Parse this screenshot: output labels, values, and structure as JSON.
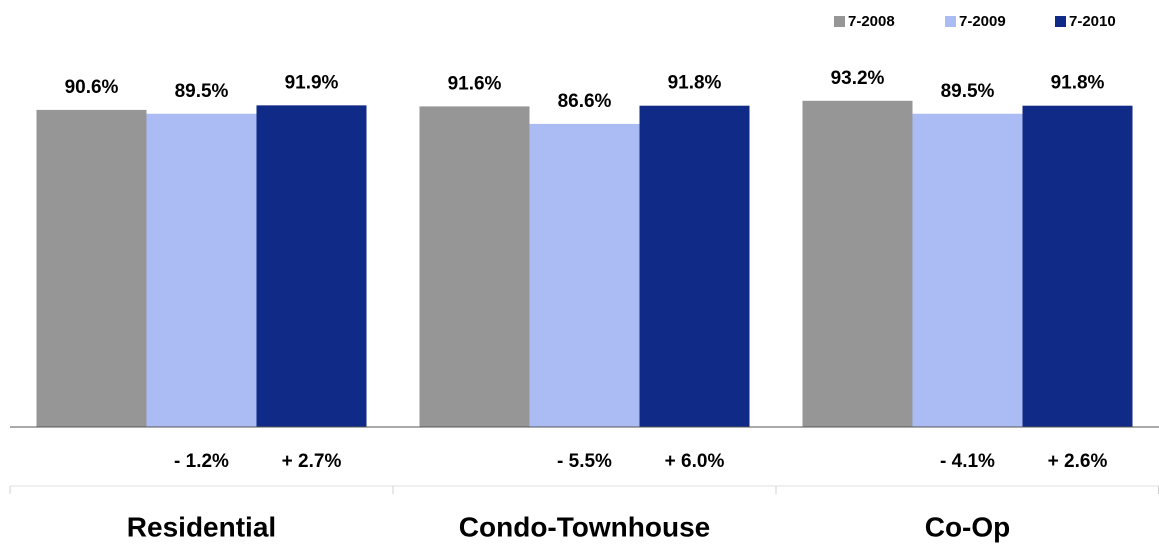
{
  "chart_data": {
    "type": "bar",
    "categories": [
      "Residential",
      "Condo-Townhouse",
      "Co-Op"
    ],
    "series": [
      {
        "name": "7-2008",
        "color": "#969696",
        "values": [
          90.6,
          91.6,
          93.2
        ],
        "value_labels": [
          "90.6%",
          "91.6%",
          "93.2%"
        ]
      },
      {
        "name": "7-2009",
        "color": "#abbcf5",
        "values": [
          89.5,
          86.6,
          89.5
        ],
        "value_labels": [
          "89.5%",
          "86.6%",
          "89.5%"
        ],
        "change_labels": [
          "- 1.2%",
          "- 5.5%",
          "- 4.1%"
        ]
      },
      {
        "name": "7-2010",
        "color": "#0f2a87",
        "values": [
          91.9,
          91.8,
          91.8
        ],
        "value_labels": [
          "91.9%",
          "91.8%",
          "91.8%"
        ],
        "change_labels": [
          "+ 2.7%",
          "+ 6.0%",
          "+ 2.6%"
        ]
      }
    ],
    "ylim": [
      0,
      100
    ],
    "legend": "top-right"
  }
}
